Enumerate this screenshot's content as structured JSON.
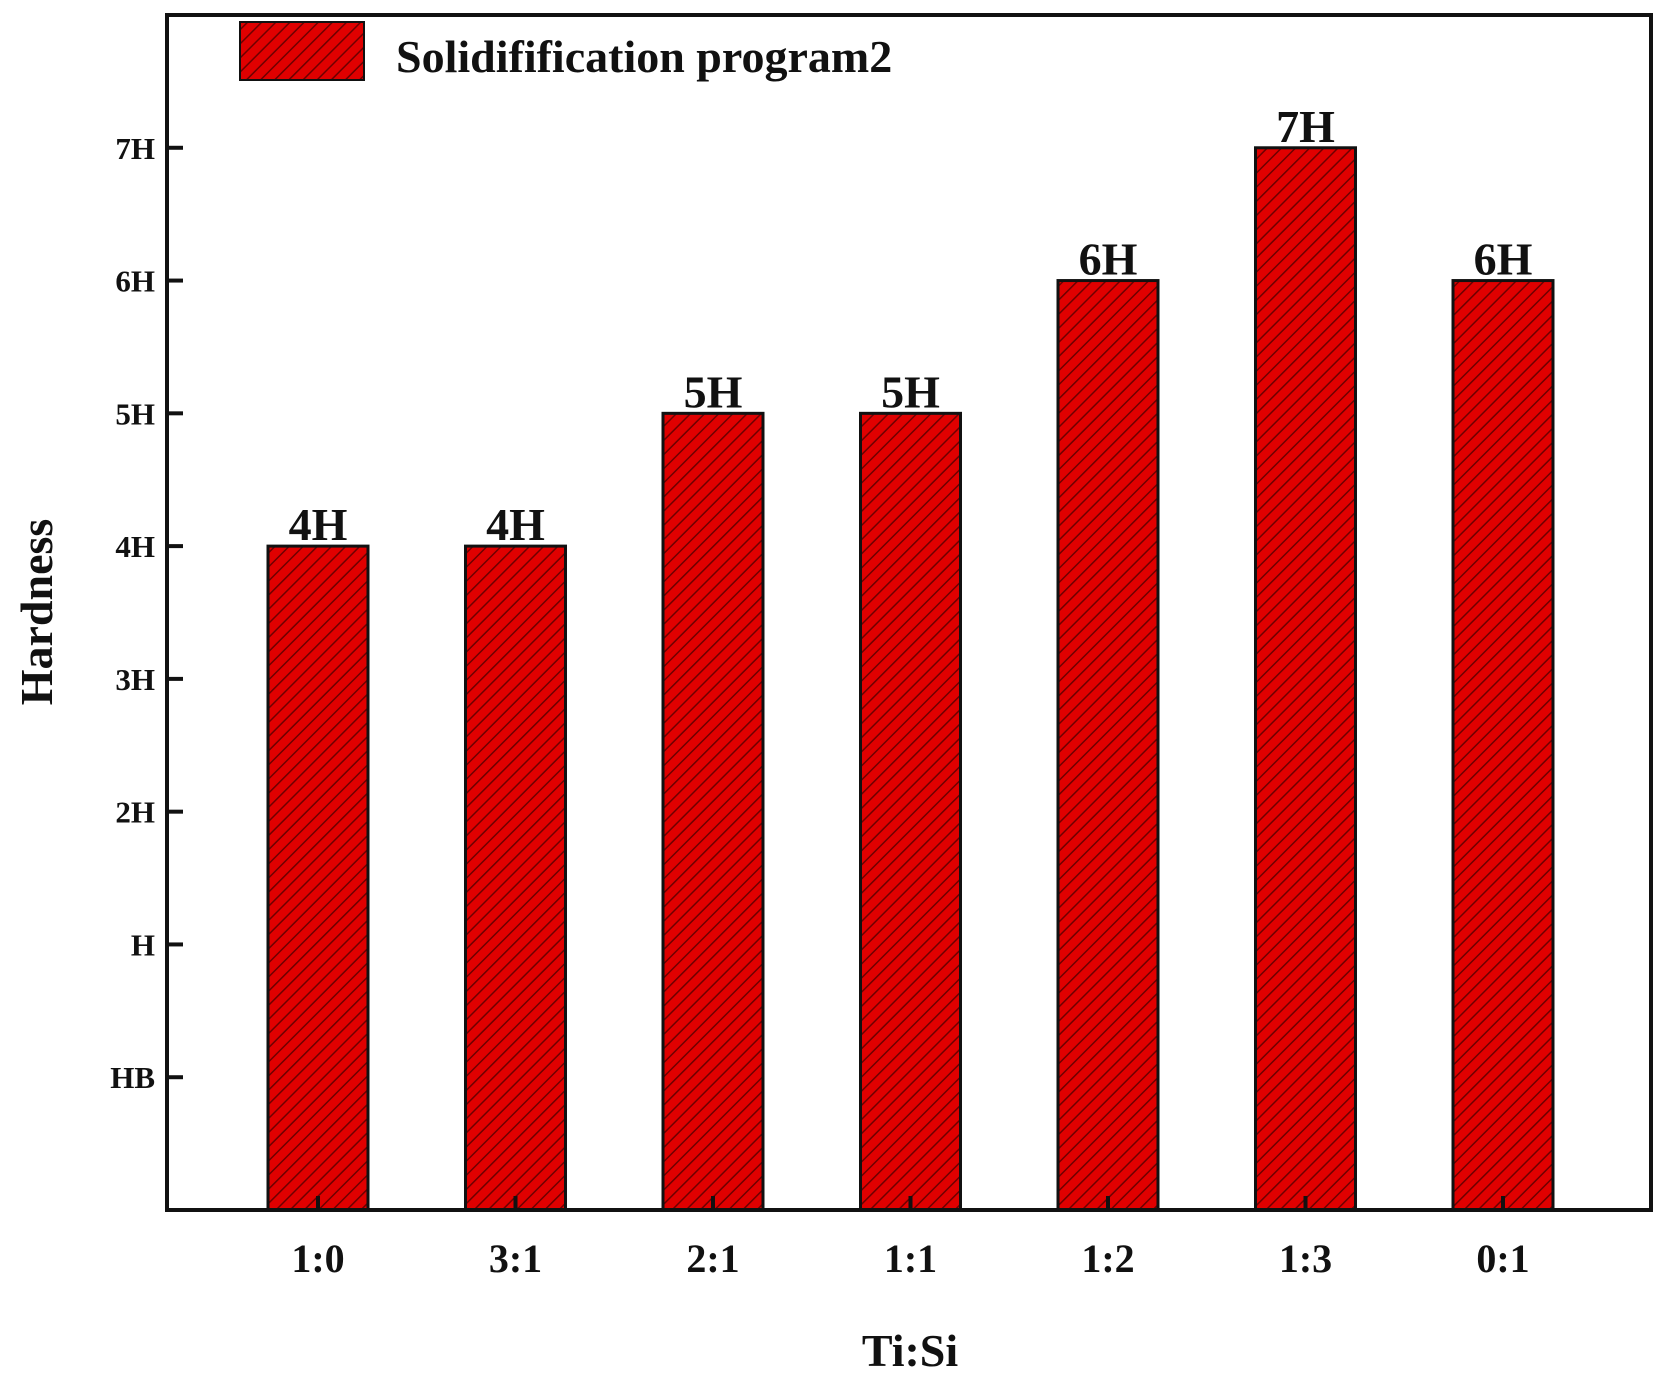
{
  "chart_data": {
    "type": "bar",
    "title": "",
    "xlabel": "Ti:Si",
    "ylabel": "Hardness",
    "categories": [
      "1:0",
      "3:1",
      "2:1",
      "1:1",
      "1:2",
      "1:3",
      "0:1"
    ],
    "series": [
      {
        "name": "Solidifification program2",
        "values": [
          5,
          5,
          6,
          6,
          7,
          8,
          7
        ],
        "data_labels": [
          "4H",
          "4H",
          "5H",
          "5H",
          "6H",
          "7H",
          "6H"
        ]
      }
    ],
    "yticks": [
      {
        "value": 1,
        "label": "HB"
      },
      {
        "value": 2,
        "label": "H"
      },
      {
        "value": 3,
        "label": "2H"
      },
      {
        "value": 4,
        "label": "3H"
      },
      {
        "value": 5,
        "label": "4H"
      },
      {
        "value": 6,
        "label": "5H"
      },
      {
        "value": 7,
        "label": "6H"
      },
      {
        "value": 8,
        "label": "7H"
      }
    ],
    "ylim": [
      0,
      9
    ],
    "grid": false,
    "legend": "top-left",
    "colors": {
      "bar_fill": "#e00000",
      "hatch": "#6e0000",
      "axis": "#111111"
    }
  }
}
